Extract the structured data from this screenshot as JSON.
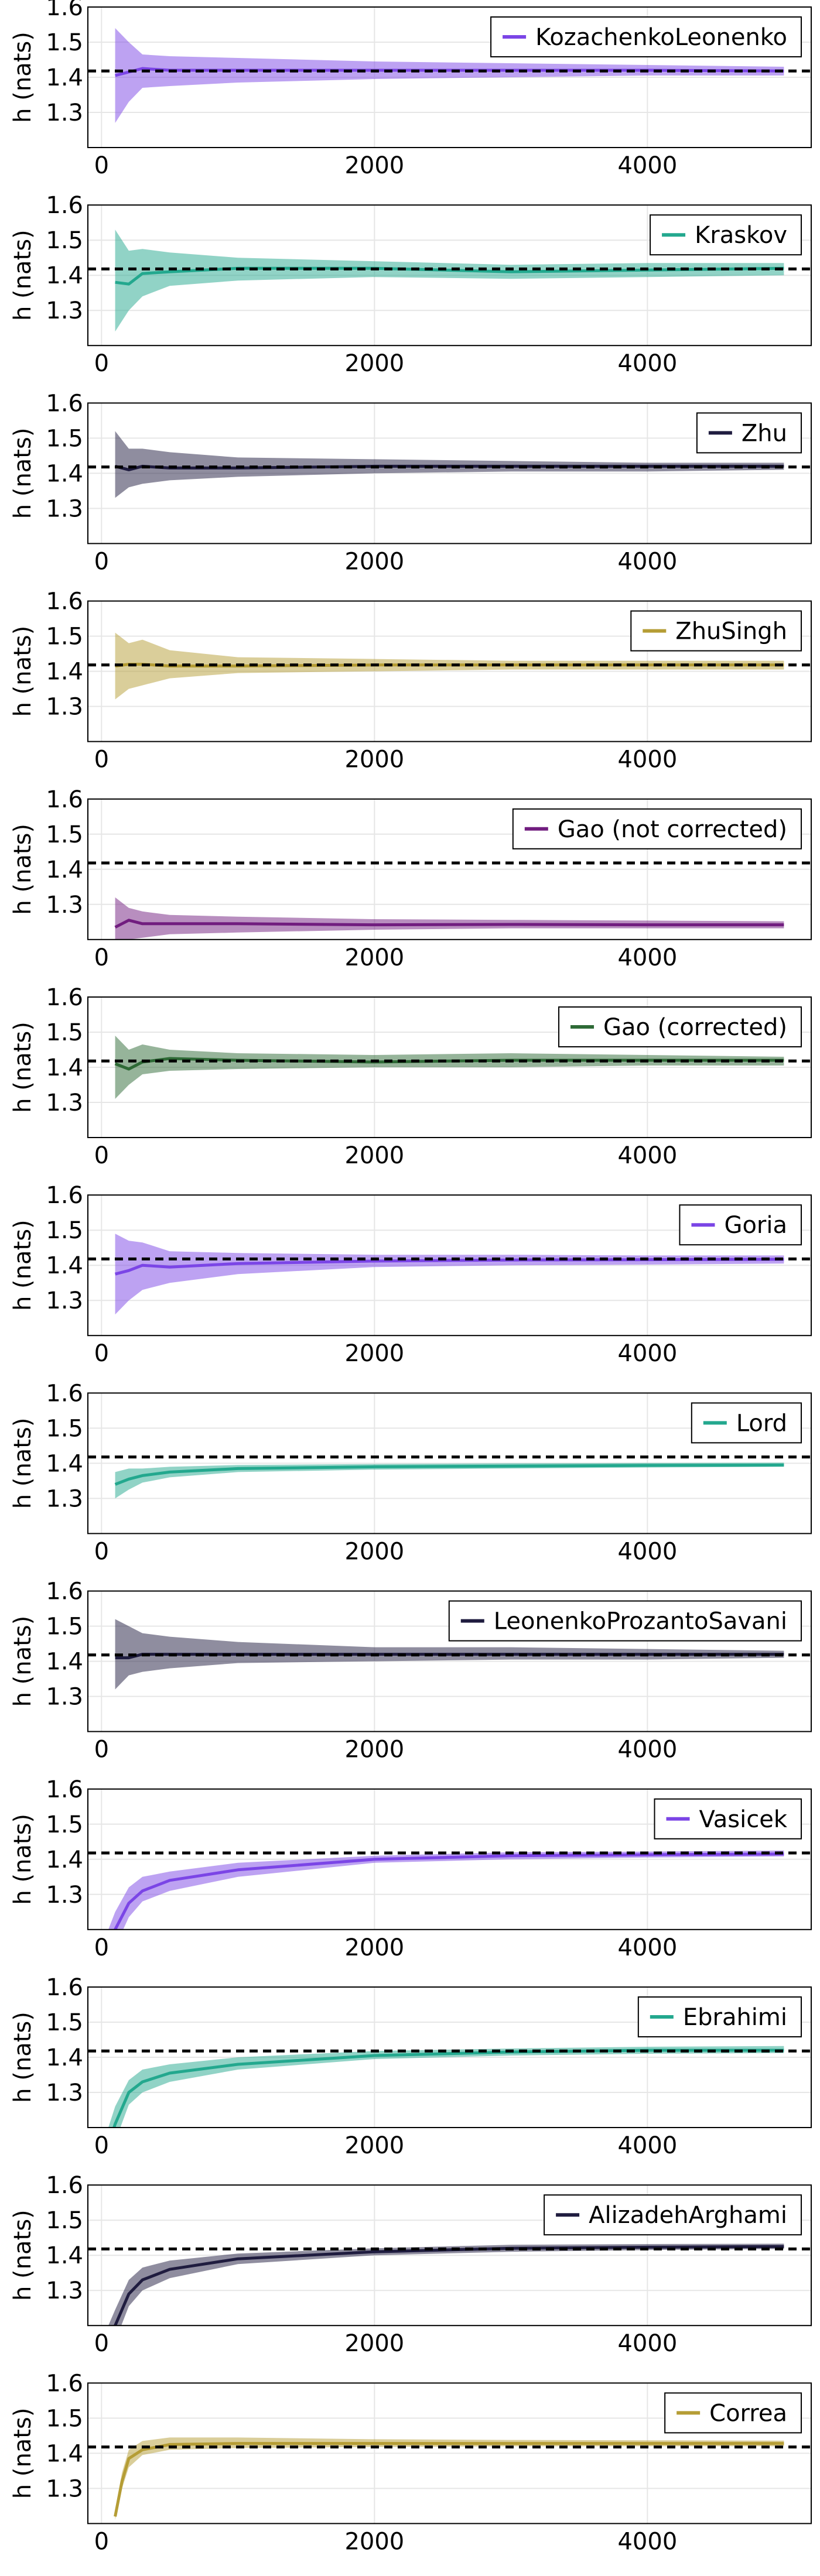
{
  "figure": {
    "true_value": 1.418,
    "xlim": [
      -100,
      5200
    ],
    "ylim": [
      1.2,
      1.6
    ],
    "xticks": [
      0,
      2000,
      4000
    ],
    "yticks": [
      1.3,
      1.4,
      1.5,
      1.6
    ],
    "ylabel": "h (nats)",
    "grid": true,
    "legend_position": "top-right"
  },
  "chart_data": [
    {
      "type": "line",
      "name": "KozachenkoLeonenko",
      "color": "#7b45e6",
      "ylabel": "h (nats)",
      "x": [
        100,
        200,
        300,
        500,
        1000,
        2000,
        3000,
        4000,
        5000
      ],
      "y": [
        1.405,
        1.415,
        1.425,
        1.42,
        1.42,
        1.42,
        1.42,
        1.42,
        1.418
      ],
      "lower": [
        1.27,
        1.33,
        1.37,
        1.375,
        1.385,
        1.395,
        1.4,
        1.405,
        1.405
      ],
      "upper": [
        1.54,
        1.5,
        1.465,
        1.46,
        1.455,
        1.445,
        1.44,
        1.435,
        1.43
      ]
    },
    {
      "type": "line",
      "name": "Kraskov",
      "color": "#23a88e",
      "ylabel": "h (nats)",
      "x": [
        100,
        200,
        300,
        500,
        1000,
        2000,
        3000,
        4000,
        5000
      ],
      "y": [
        1.38,
        1.375,
        1.405,
        1.41,
        1.42,
        1.42,
        1.41,
        1.415,
        1.42
      ],
      "lower": [
        1.24,
        1.3,
        1.34,
        1.37,
        1.385,
        1.395,
        1.39,
        1.395,
        1.4
      ],
      "upper": [
        1.53,
        1.47,
        1.475,
        1.465,
        1.45,
        1.44,
        1.43,
        1.435,
        1.435
      ]
    },
    {
      "type": "line",
      "name": "Zhu",
      "color": "#1f1c3f",
      "ylabel": "h (nats)",
      "x": [
        100,
        200,
        300,
        500,
        1000,
        2000,
        3000,
        4000,
        5000
      ],
      "y": [
        1.42,
        1.41,
        1.42,
        1.415,
        1.415,
        1.42,
        1.42,
        1.42,
        1.42
      ],
      "lower": [
        1.33,
        1.36,
        1.37,
        1.38,
        1.39,
        1.4,
        1.405,
        1.405,
        1.41
      ],
      "upper": [
        1.52,
        1.47,
        1.47,
        1.46,
        1.445,
        1.44,
        1.435,
        1.43,
        1.43
      ]
    },
    {
      "type": "line",
      "name": "ZhuSingh",
      "color": "#b59d35",
      "ylabel": "h (nats)",
      "x": [
        100,
        200,
        300,
        500,
        1000,
        2000,
        3000,
        4000,
        5000
      ],
      "y": [
        1.415,
        1.42,
        1.42,
        1.415,
        1.415,
        1.418,
        1.418,
        1.418,
        1.418
      ],
      "lower": [
        1.32,
        1.35,
        1.36,
        1.38,
        1.395,
        1.4,
        1.405,
        1.405,
        1.405
      ],
      "upper": [
        1.51,
        1.48,
        1.49,
        1.46,
        1.44,
        1.435,
        1.43,
        1.43,
        1.43
      ]
    },
    {
      "type": "line",
      "name": "Gao (not corrected)",
      "color": "#711d7f",
      "ylabel": "h (nats)",
      "x": [
        100,
        200,
        300,
        500,
        1000,
        2000,
        3000,
        4000,
        5000
      ],
      "y": [
        1.235,
        1.255,
        1.245,
        1.245,
        1.245,
        1.242,
        1.243,
        1.242,
        1.242
      ],
      "lower": [
        1.19,
        1.2,
        1.205,
        1.215,
        1.22,
        1.228,
        1.232,
        1.232,
        1.232
      ],
      "upper": [
        1.32,
        1.29,
        1.28,
        1.27,
        1.265,
        1.258,
        1.256,
        1.254,
        1.252
      ]
    },
    {
      "type": "line",
      "name": "Gao (corrected)",
      "color": "#2e6a36",
      "ylabel": "h (nats)",
      "x": [
        100,
        200,
        300,
        500,
        1000,
        2000,
        3000,
        4000,
        5000
      ],
      "y": [
        1.41,
        1.395,
        1.415,
        1.425,
        1.42,
        1.415,
        1.42,
        1.42,
        1.42
      ],
      "lower": [
        1.31,
        1.35,
        1.38,
        1.39,
        1.395,
        1.4,
        1.4,
        1.405,
        1.405
      ],
      "upper": [
        1.49,
        1.45,
        1.465,
        1.45,
        1.44,
        1.435,
        1.44,
        1.435,
        1.43
      ]
    },
    {
      "type": "line",
      "name": "Goria",
      "color": "#7b45e6",
      "ylabel": "h (nats)",
      "x": [
        100,
        200,
        300,
        500,
        1000,
        2000,
        3000,
        4000,
        5000
      ],
      "y": [
        1.375,
        1.385,
        1.4,
        1.395,
        1.405,
        1.412,
        1.415,
        1.416,
        1.417
      ],
      "lower": [
        1.26,
        1.3,
        1.33,
        1.35,
        1.375,
        1.395,
        1.4,
        1.402,
        1.405
      ],
      "upper": [
        1.49,
        1.47,
        1.465,
        1.44,
        1.435,
        1.43,
        1.43,
        1.428,
        1.428
      ]
    },
    {
      "type": "line",
      "name": "Lord",
      "color": "#23a88e",
      "ylabel": "h (nats)",
      "x": [
        100,
        200,
        300,
        500,
        1000,
        2000,
        3000,
        4000,
        5000
      ],
      "y": [
        1.34,
        1.355,
        1.365,
        1.375,
        1.385,
        1.39,
        1.392,
        1.394,
        1.395
      ],
      "lower": [
        1.3,
        1.325,
        1.345,
        1.36,
        1.375,
        1.382,
        1.385,
        1.388,
        1.39
      ],
      "upper": [
        1.375,
        1.385,
        1.385,
        1.39,
        1.395,
        1.398,
        1.4,
        1.401,
        1.402
      ]
    },
    {
      "type": "line",
      "name": "LeonenkoProzantoSavani",
      "color": "#1f1c3f",
      "ylabel": "h (nats)",
      "x": [
        100,
        200,
        300,
        500,
        1000,
        2000,
        3000,
        4000,
        5000
      ],
      "y": [
        1.41,
        1.41,
        1.42,
        1.42,
        1.42,
        1.42,
        1.42,
        1.42,
        1.42
      ],
      "lower": [
        1.32,
        1.36,
        1.37,
        1.38,
        1.395,
        1.4,
        1.405,
        1.405,
        1.41
      ],
      "upper": [
        1.52,
        1.5,
        1.48,
        1.47,
        1.455,
        1.44,
        1.44,
        1.435,
        1.43
      ]
    },
    {
      "type": "line",
      "name": "Vasicek",
      "color": "#7b45e6",
      "ylabel": "h (nats)",
      "x": [
        50,
        100,
        200,
        300,
        500,
        1000,
        2000,
        3000,
        4000,
        5000
      ],
      "y": [
        1.15,
        1.2,
        1.275,
        1.31,
        1.34,
        1.37,
        1.4,
        1.41,
        1.413,
        1.415
      ],
      "lower": [
        1.1,
        1.15,
        1.235,
        1.28,
        1.31,
        1.35,
        1.39,
        1.4,
        1.405,
        1.408
      ],
      "upper": [
        1.2,
        1.25,
        1.32,
        1.35,
        1.365,
        1.39,
        1.41,
        1.42,
        1.422,
        1.425
      ]
    },
    {
      "type": "line",
      "name": "Ebrahimi",
      "color": "#23a88e",
      "ylabel": "h (nats)",
      "x": [
        50,
        100,
        200,
        300,
        500,
        1000,
        2000,
        3000,
        4000,
        5000
      ],
      "y": [
        1.15,
        1.21,
        1.3,
        1.33,
        1.355,
        1.38,
        1.405,
        1.415,
        1.42,
        1.42
      ],
      "lower": [
        1.1,
        1.16,
        1.265,
        1.3,
        1.33,
        1.365,
        1.395,
        1.405,
        1.41,
        1.412
      ],
      "upper": [
        1.2,
        1.26,
        1.335,
        1.365,
        1.38,
        1.4,
        1.418,
        1.425,
        1.43,
        1.432
      ]
    },
    {
      "type": "line",
      "name": "AlizadehArghami",
      "color": "#1f1c3f",
      "ylabel": "h (nats)",
      "x": [
        50,
        100,
        200,
        300,
        500,
        1000,
        2000,
        3000,
        4000,
        5000
      ],
      "y": [
        1.15,
        1.2,
        1.29,
        1.33,
        1.36,
        1.39,
        1.41,
        1.42,
        1.423,
        1.425
      ],
      "lower": [
        1.1,
        1.155,
        1.255,
        1.3,
        1.335,
        1.375,
        1.4,
        1.41,
        1.415,
        1.418
      ],
      "upper": [
        1.2,
        1.245,
        1.33,
        1.365,
        1.385,
        1.405,
        1.42,
        1.43,
        1.432,
        1.433
      ]
    },
    {
      "type": "line",
      "name": "Correa",
      "color": "#b59d35",
      "ylabel": "h (nats)",
      "x": [
        100,
        150,
        200,
        300,
        500,
        1000,
        2000,
        3000,
        4000,
        5000
      ],
      "y": [
        1.22,
        1.32,
        1.385,
        1.41,
        1.425,
        1.428,
        1.428,
        1.428,
        1.428,
        1.428
      ],
      "lower": [
        1.21,
        1.3,
        1.36,
        1.395,
        1.41,
        1.415,
        1.418,
        1.42,
        1.42,
        1.42
      ],
      "upper": [
        1.24,
        1.345,
        1.41,
        1.435,
        1.445,
        1.445,
        1.44,
        1.438,
        1.437,
        1.436
      ]
    }
  ]
}
